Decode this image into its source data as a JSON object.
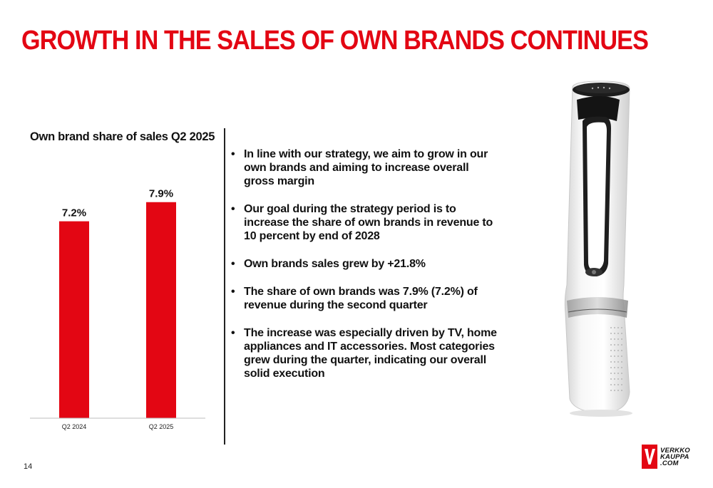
{
  "slide": {
    "title": "GROWTH IN THE SALES OF OWN BRANDS CONTINUES",
    "page_number": "14",
    "accent_color": "#e30613"
  },
  "chart_data": {
    "type": "bar",
    "title": "Own brand share of sales Q2 2025",
    "categories": [
      "Q2 2024",
      "Q2 2025"
    ],
    "values": [
      7.2,
      7.9
    ],
    "data_labels": [
      "7.2%",
      "7.9%"
    ],
    "xlabel": "",
    "ylabel": "",
    "ylim": [
      0,
      9.3
    ],
    "grid": false,
    "bar_color": "#e30613"
  },
  "bullets": [
    "In line with our strategy, we aim to grow in our own brands and aiming to increase overall gross margin",
    "Our goal during the strategy period is to increase the share of own brands in revenue to 10 percent by end of 2028",
    "Own brands sales grew by +21.8%",
    "The share of own brands was 7.9% (7.2%) of revenue during the second quarter",
    "The increase was especially driven by TV, home appliances and IT accessories. Most categories grew during the quarter, indicating our overall solid execution"
  ],
  "bullet_symbol": "•",
  "product_image": {
    "icon": "tower-fan-image"
  },
  "logo": {
    "mark": "V",
    "lines": [
      "VERKKO",
      "KAUPPA",
      ".COM"
    ]
  }
}
